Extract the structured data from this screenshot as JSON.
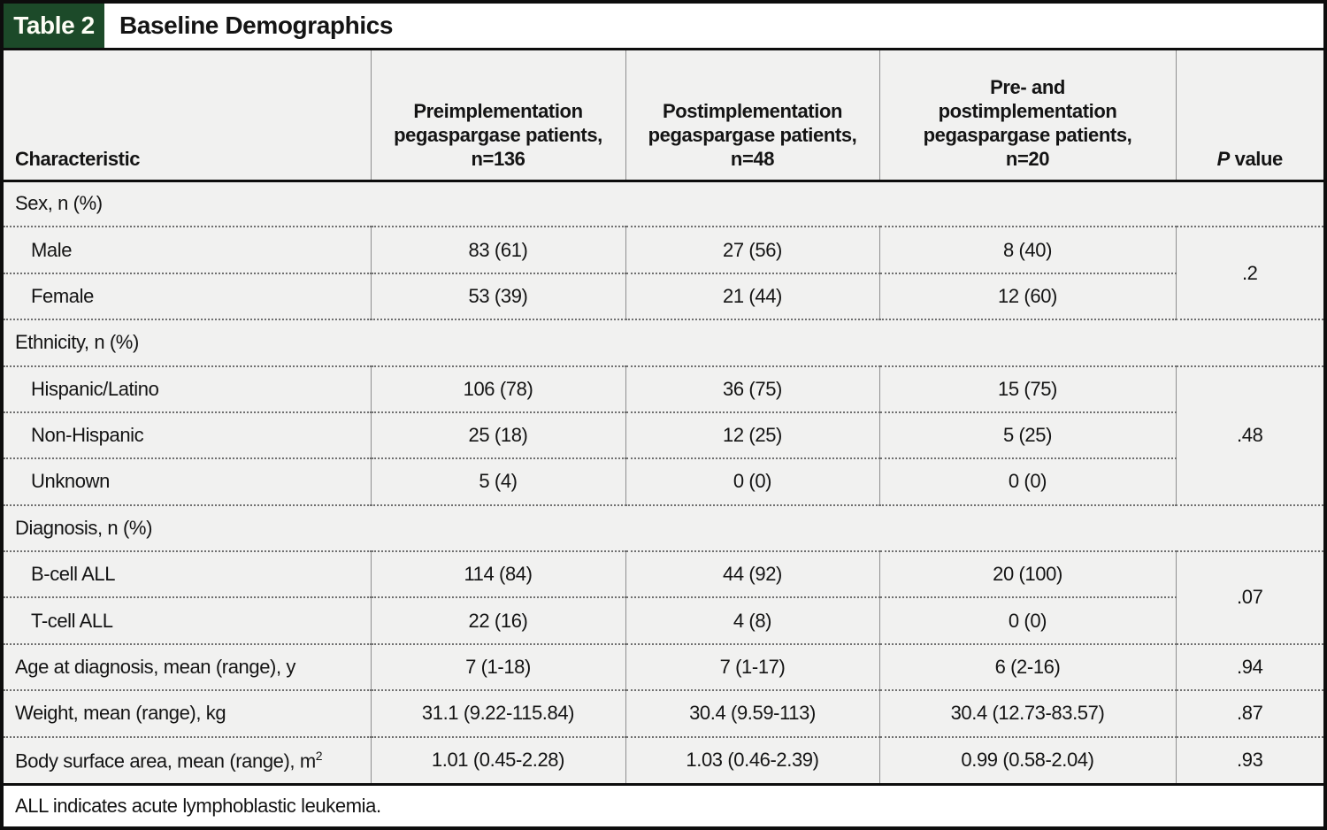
{
  "colors": {
    "accent_green": "#1c4a29",
    "table_background": "#f1f1f0",
    "frame_border": "#0d0d0d",
    "column_divider": "#8f8f8f",
    "row_dotted": "#6f6f6f"
  },
  "title_bar": {
    "badge": "Table 2",
    "title": "Baseline Demographics"
  },
  "table": {
    "header": {
      "characteristic": "Characteristic",
      "groups": [
        "Preimplementation\npegaspargase patients,\nn=136",
        "Postimplementation\npegaspargase patients,\nn=48",
        "Pre- and\npostimplementation\npegaspargase patients,\nn=20"
      ],
      "p_italic": "P",
      "p_rest": " value"
    },
    "rows": [
      {
        "type": "section",
        "label": "Sex, n (%)"
      },
      {
        "type": "data",
        "indent": true,
        "label": "Male",
        "values": [
          "83 (61)",
          "27 (56)",
          "8 (40)"
        ],
        "p": ".2",
        "p_rowspan": 2
      },
      {
        "type": "data",
        "indent": true,
        "label": "Female",
        "values": [
          "53 (39)",
          "21 (44)",
          "12 (60)"
        ],
        "p": null
      },
      {
        "type": "section",
        "label": "Ethnicity, n (%)"
      },
      {
        "type": "data",
        "indent": true,
        "label": "Hispanic/Latino",
        "values": [
          "106 (78)",
          "36 (75)",
          "15 (75)"
        ],
        "p": ".48",
        "p_rowspan": 3
      },
      {
        "type": "data",
        "indent": true,
        "label": "Non-Hispanic",
        "values": [
          "25 (18)",
          "12 (25)",
          "5 (25)"
        ],
        "p": null
      },
      {
        "type": "data",
        "indent": true,
        "label": "Unknown",
        "values": [
          "5 (4)",
          "0 (0)",
          "0 (0)"
        ],
        "p": null
      },
      {
        "type": "section",
        "label": "Diagnosis, n (%)"
      },
      {
        "type": "data",
        "indent": true,
        "label": "B-cell ALL",
        "values": [
          "114 (84)",
          "44 (92)",
          "20 (100)"
        ],
        "p": ".07",
        "p_rowspan": 2
      },
      {
        "type": "data",
        "indent": true,
        "label": "T-cell ALL",
        "values": [
          "22 (16)",
          "4 (8)",
          "0 (0)"
        ],
        "p": null
      },
      {
        "type": "data",
        "indent": false,
        "label": "Age at diagnosis, mean (range), y",
        "values": [
          "7 (1-18)",
          "7 (1-17)",
          "6 (2-16)"
        ],
        "p": ".94",
        "p_rowspan": 1
      },
      {
        "type": "data",
        "indent": false,
        "label": "Weight, mean (range), kg",
        "values": [
          "31.1 (9.22-115.84)",
          "30.4 (9.59-113)",
          "30.4 (12.73-83.57)"
        ],
        "p": ".87",
        "p_rowspan": 1
      },
      {
        "type": "data",
        "indent": false,
        "label": "Body surface area, mean (range), m",
        "label_sup": "2",
        "values": [
          "1.01 (0.45-2.28)",
          "1.03 (0.46-2.39)",
          "0.99 (0.58-2.04)"
        ],
        "p": ".93",
        "p_rowspan": 1
      }
    ]
  },
  "footnote": "ALL indicates acute lymphoblastic leukemia."
}
